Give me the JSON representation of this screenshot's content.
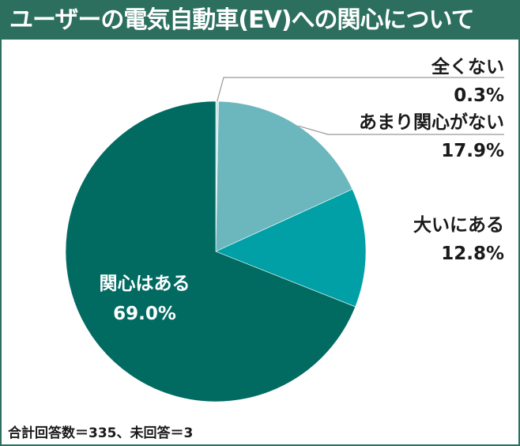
{
  "title": "ユーザーの電気自動車(EV)への関心について",
  "footnote": "合計回答数＝335、未回答＝3",
  "colors": {
    "frame": "#2c6f5f",
    "全くない": "#cfe6e6",
    "あまり関心がない": "#6bb7bd",
    "大いにある": "#00a0a6",
    "関心はある": "#016b62"
  },
  "chart_data": {
    "type": "pie",
    "start_angle_deg": 0,
    "direction": "clockwise",
    "slices": [
      {
        "label": "全くない",
        "value": 0.3,
        "value_label": "0.3%"
      },
      {
        "label": "あまり関心がない",
        "value": 17.9,
        "value_label": "17.9%"
      },
      {
        "label": "大いにある",
        "value": 12.8,
        "value_label": "12.8%"
      },
      {
        "label": "関心はある",
        "value": 69.0,
        "value_label": "69.0%"
      }
    ]
  }
}
